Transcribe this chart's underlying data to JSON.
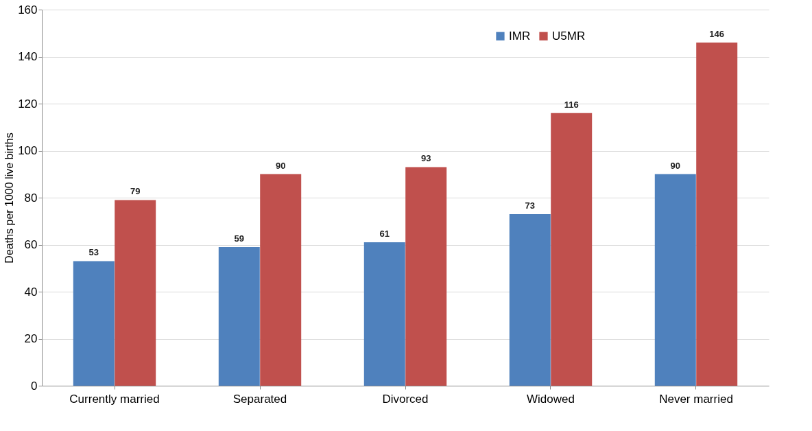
{
  "chart_data": {
    "type": "bar",
    "ylabel": "Deaths per 1000 live births",
    "categories": [
      "Currently married",
      "Separated",
      "Divorced",
      "Widowed",
      "Never married"
    ],
    "series": [
      {
        "name": "IMR",
        "color": "#4f81bd",
        "values": [
          53,
          59,
          61,
          73,
          90
        ]
      },
      {
        "name": "U5MR",
        "color": "#c0504d",
        "values": [
          79,
          90,
          93,
          116,
          146
        ]
      }
    ],
    "ylim": [
      0,
      160
    ],
    "yticks": [
      0,
      20,
      40,
      60,
      80,
      100,
      120,
      140,
      160
    ],
    "grid": "y",
    "legend": "top right",
    "data_labels": true
  }
}
